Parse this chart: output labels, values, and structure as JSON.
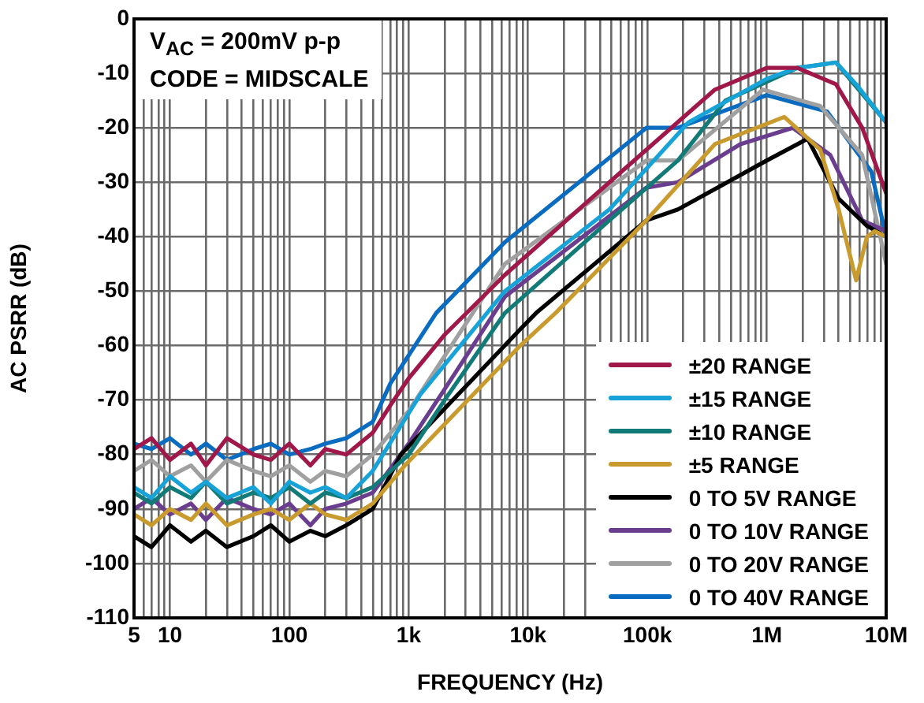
{
  "chart_data": {
    "type": "line",
    "xlabel": "FREQUENCY (Hz)",
    "ylabel": "AC PSRR (dB)",
    "annotations": [
      "V$_{AC}$ = 200mV p-p",
      "CODE = MIDSCALE"
    ],
    "log": "x",
    "grid": true,
    "legend": "bottom right",
    "marker": "none",
    "line_style": "solid",
    "xlim": [
      5,
      10000000
    ],
    "ylim": [
      -110,
      0
    ],
    "yticks": [
      -110,
      -100,
      -90,
      -80,
      -70,
      -60,
      -50,
      -40,
      -30,
      -20,
      -10,
      0
    ],
    "xticks": [
      5,
      {
        "value": 6,
        "label": null
      },
      {
        "value": 7,
        "label": null
      },
      {
        "value": 8,
        "label": null
      },
      {
        "value": 9,
        "label": null
      },
      10,
      {
        "value": 20,
        "label": null
      },
      {
        "value": 30,
        "label": null
      },
      {
        "value": 40,
        "label": null
      },
      {
        "value": 50,
        "label": null
      },
      {
        "value": 60,
        "label": null
      },
      {
        "value": 70,
        "label": null
      },
      {
        "value": 80,
        "label": null
      },
      {
        "value": 90,
        "label": null
      },
      100,
      {
        "value": 200,
        "label": null
      },
      {
        "value": 300,
        "label": null
      },
      {
        "value": 400,
        "label": null
      },
      {
        "value": 500,
        "label": null
      },
      {
        "value": 600,
        "label": null
      },
      {
        "value": 700,
        "label": null
      },
      {
        "value": 800,
        "label": null
      },
      {
        "value": 900,
        "label": null
      },
      {
        "value": 1000,
        "label": "1k"
      },
      {
        "value": 2000,
        "label": null
      },
      {
        "value": 3000,
        "label": null
      },
      {
        "value": 4000,
        "label": null
      },
      {
        "value": 5000,
        "label": null
      },
      {
        "value": 6000,
        "label": null
      },
      {
        "value": 7000,
        "label": null
      },
      {
        "value": 8000,
        "label": null
      },
      {
        "value": 9000,
        "label": null
      },
      {
        "value": 10000,
        "label": "10k"
      },
      {
        "value": 20000,
        "label": null
      },
      {
        "value": 30000,
        "label": null
      },
      {
        "value": 40000,
        "label": null
      },
      {
        "value": 50000,
        "label": null
      },
      {
        "value": 60000,
        "label": null
      },
      {
        "value": 70000,
        "label": null
      },
      {
        "value": 80000,
        "label": null
      },
      {
        "value": 90000,
        "label": null
      },
      {
        "value": 100000,
        "label": "100k"
      },
      {
        "value": 200000,
        "label": null
      },
      {
        "value": 300000,
        "label": null
      },
      {
        "value": 400000,
        "label": null
      },
      {
        "value": 500000,
        "label": null
      },
      {
        "value": 600000,
        "label": null
      },
      {
        "value": 700000,
        "label": null
      },
      {
        "value": 800000,
        "label": null
      },
      {
        "value": 900000,
        "label": null
      },
      {
        "value": 1000000,
        "label": "1M"
      },
      {
        "value": 2000000,
        "label": null
      },
      {
        "value": 3000000,
        "label": null
      },
      {
        "value": 4000000,
        "label": null
      },
      {
        "value": 5000000,
        "label": null
      },
      {
        "value": 6000000,
        "label": null
      },
      {
        "value": 7000000,
        "label": null
      },
      {
        "value": 8000000,
        "label": null
      },
      {
        "value": 9000000,
        "label": null
      },
      {
        "value": 10000000,
        "label": "10M"
      }
    ],
    "series": [
      {
        "name": "±20 RANGE",
        "color": "#a0174a",
        "x": [
          5,
          7,
          10,
          15,
          20,
          30,
          50,
          70,
          100,
          150,
          200,
          300,
          500,
          700,
          1000,
          2000,
          6400,
          48000,
          367000,
          1000000,
          1800000,
          3800000,
          6300000,
          10000000
        ],
        "values": [
          -79,
          -77,
          -81,
          -78,
          -82,
          -77,
          -80,
          -81,
          -78,
          -82,
          -79,
          -80,
          -76,
          -71,
          -66,
          -58,
          -47,
          -30,
          -13,
          -9,
          -9,
          -12,
          -20,
          -32
        ]
      },
      {
        "name": "±15 RANGE",
        "color": "#17a3d8",
        "x": [
          5,
          7,
          10,
          15,
          20,
          30,
          50,
          70,
          100,
          150,
          200,
          300,
          500,
          1250,
          6400,
          48000,
          221000,
          1000000,
          1800000,
          3800000,
          5600000,
          10000000
        ],
        "values": [
          -86,
          -88,
          -84,
          -87,
          -85,
          -88,
          -86,
          -89,
          -85,
          -87,
          -86,
          -88,
          -83,
          -69,
          -50,
          -35,
          -19,
          -11,
          -9,
          -8,
          -12,
          -19
        ]
      },
      {
        "name": "±10 RANGE",
        "color": "#137b77",
        "x": [
          5,
          7,
          10,
          15,
          20,
          30,
          50,
          70,
          100,
          150,
          200,
          300,
          500,
          1000,
          2000,
          6400,
          48000,
          180000,
          450000,
          1800000,
          3800000,
          10000000
        ],
        "values": [
          -87,
          -89,
          -86,
          -88,
          -85,
          -89,
          -87,
          -88,
          -86,
          -89,
          -87,
          -88,
          -86,
          -80,
          -70,
          -54,
          -37,
          -26,
          -15,
          -9,
          -8,
          -19
        ]
      },
      {
        "name": "±5 RANGE",
        "color": "#c99a2e",
        "x": [
          5,
          7,
          10,
          15,
          20,
          30,
          50,
          70,
          100,
          150,
          200,
          300,
          500,
          930,
          8600,
          17000,
          98000,
          367000,
          1400000,
          2800000,
          4000000,
          5600000,
          6900000,
          8000000,
          10000000
        ],
        "values": [
          -91,
          -93,
          -90,
          -92,
          -89,
          -93,
          -91,
          -90,
          -92,
          -89,
          -91,
          -92,
          -89,
          -82,
          -60,
          -54,
          -37,
          -23,
          -18,
          -24,
          -35,
          -48,
          -40,
          -39,
          -40
        ]
      },
      {
        "name": "0 TO 5V RANGE",
        "color": "#000000",
        "x": [
          5,
          7,
          10,
          15,
          20,
          30,
          50,
          70,
          100,
          150,
          200,
          300,
          500,
          860,
          8600,
          11700,
          98000,
          180000,
          1000000,
          2200000,
          4000000,
          6900000,
          10000000
        ],
        "values": [
          -95,
          -97,
          -93,
          -96,
          -94,
          -97,
          -95,
          -93,
          -96,
          -94,
          -95,
          -93,
          -90,
          -80,
          -57,
          -54,
          -37,
          -35,
          -26,
          -22,
          -33,
          -38,
          -40
        ]
      },
      {
        "name": "0 TO 10V RANGE",
        "color": "#6a3d8f",
        "x": [
          5,
          7,
          10,
          15,
          20,
          30,
          50,
          70,
          100,
          150,
          200,
          300,
          500,
          1000,
          2000,
          6400,
          98000,
          180000,
          600000,
          1650000,
          3400000,
          6300000,
          10000000
        ],
        "values": [
          -90,
          -88,
          -91,
          -89,
          -92,
          -88,
          -90,
          -91,
          -89,
          -93,
          -90,
          -89,
          -87,
          -78,
          -68,
          -51,
          -31,
          -30,
          -23,
          -20,
          -25,
          -37,
          -39
        ]
      },
      {
        "name": "0 TO 20V RANGE",
        "color": "#a0a0a0",
        "x": [
          5,
          7,
          10,
          15,
          20,
          30,
          50,
          70,
          100,
          150,
          200,
          300,
          500,
          1000,
          6400,
          98000,
          180000,
          930000,
          2800000,
          6300000,
          10000000
        ],
        "values": [
          -83,
          -81,
          -84,
          -82,
          -85,
          -81,
          -83,
          -84,
          -82,
          -85,
          -83,
          -84,
          -80,
          -72,
          -45,
          -26,
          -26,
          -13,
          -16,
          -25,
          -45
        ]
      },
      {
        "name": "0 TO 40V RANGE",
        "color": "#0a6cc0",
        "x": [
          5,
          7,
          10,
          15,
          20,
          30,
          50,
          70,
          100,
          150,
          200,
          300,
          500,
          700,
          1700,
          6400,
          98000,
          180000,
          1000000,
          3200000,
          7500000,
          10000000
        ],
        "values": [
          -78,
          -79,
          -77,
          -80,
          -78,
          -81,
          -79,
          -78,
          -80,
          -79,
          -78,
          -77,
          -74,
          -67,
          -54,
          -41,
          -20,
          -20,
          -14,
          -17,
          -28,
          -40
        ]
      }
    ]
  }
}
